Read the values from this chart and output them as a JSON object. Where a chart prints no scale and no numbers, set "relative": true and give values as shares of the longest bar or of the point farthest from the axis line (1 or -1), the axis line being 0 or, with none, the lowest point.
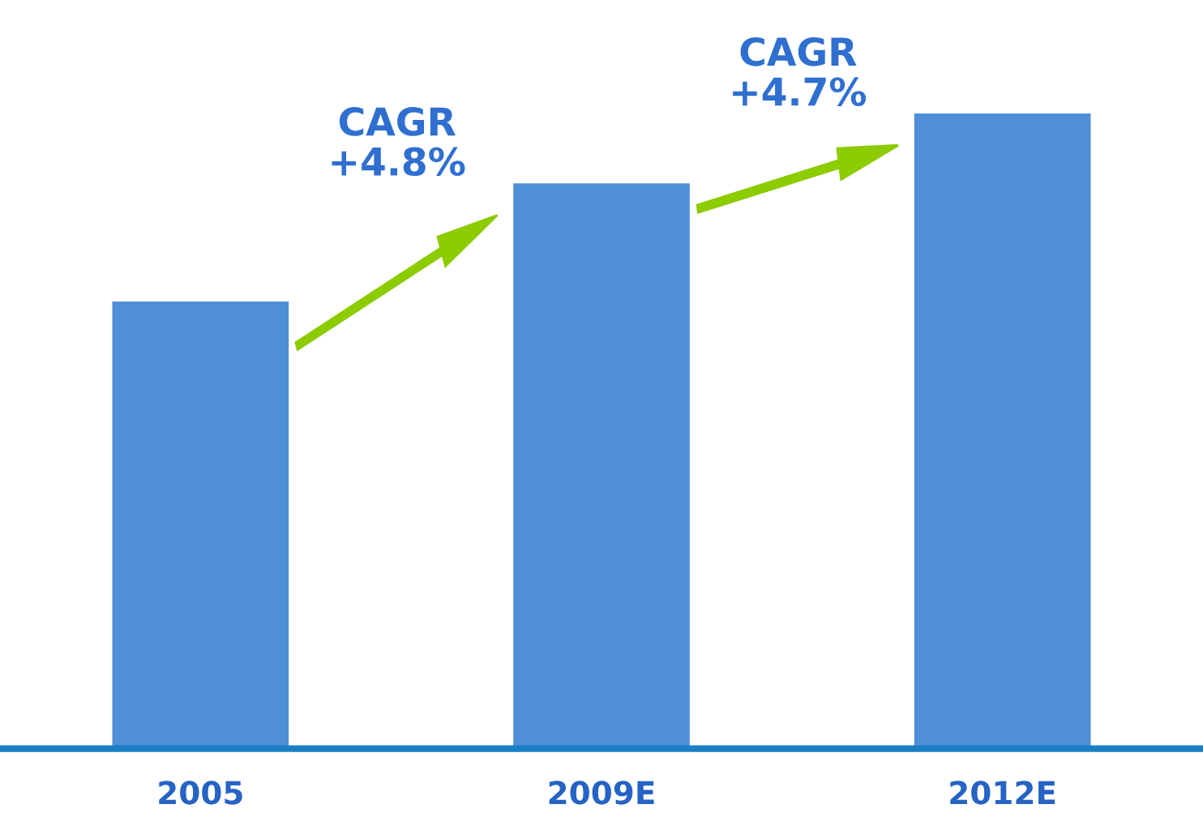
{
  "chart_data": {
    "type": "bar",
    "relative": true,
    "categories": [
      "2005",
      "2009E",
      "2012E"
    ],
    "values": [
      0.704,
      0.89,
      1
    ],
    "color": "#4f8fd8",
    "annotations": [
      "CAGR\n+4.8%",
      "CAGR\n+4.7%"
    ],
    "grid": false
  }
}
